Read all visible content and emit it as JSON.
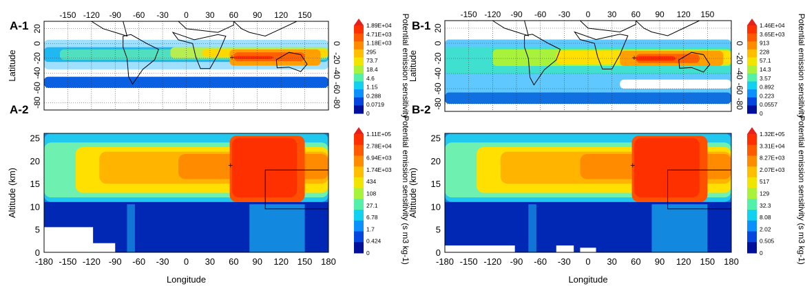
{
  "chart_data": [
    {
      "type": "heatmap",
      "panel_label": "A-1",
      "xlabel": "",
      "ylabel": "Latitude",
      "x_ticks": [
        "-150",
        "-120",
        "-90",
        "-60",
        "-30",
        "0",
        "30",
        "60",
        "90",
        "120",
        "150"
      ],
      "y_ticks_left": [
        "20",
        "0",
        "-20",
        "-40",
        "-60",
        "-80"
      ],
      "y_ticks_right": [
        "0",
        "-20",
        "-40",
        "-60",
        "-80"
      ],
      "colorbar": {
        "label": "Potential emission sensitivity",
        "ticks": [
          "1.89E+04",
          "4.71E+03",
          "1.18E+03",
          "295",
          "73.7",
          "18.4",
          "4.6",
          "1.15",
          "0.288",
          "0.0719",
          "0"
        ]
      }
    },
    {
      "type": "heatmap",
      "panel_label": "A-2",
      "xlabel": "Longitude",
      "ylabel": "Altitude (km)",
      "x_ticks": [
        "-180",
        "-150",
        "-120",
        "-90",
        "-60",
        "-30",
        "0",
        "30",
        "60",
        "90",
        "120",
        "150",
        "180"
      ],
      "y_ticks": [
        "0",
        "5",
        "10",
        "15",
        "20",
        "25"
      ],
      "xlim": [
        -180,
        180
      ],
      "ylim": [
        0,
        25
      ],
      "colorbar": {
        "label": "Potential emission sensitivity (s m3 kg-1)",
        "ticks": [
          "1.11E+05",
          "2.78E+04",
          "6.94E+03",
          "1.74E+03",
          "434",
          "108",
          "27.1",
          "6.78",
          "1.7",
          "0.424",
          "0"
        ]
      }
    },
    {
      "type": "heatmap",
      "panel_label": "B-1",
      "xlabel": "",
      "ylabel": "Latitude",
      "x_ticks": [
        "-150",
        "-120",
        "-90",
        "-60",
        "-30",
        "0",
        "30",
        "60",
        "90",
        "120",
        "150"
      ],
      "y_ticks_left": [
        "20",
        "0",
        "-20",
        "-40",
        "-60",
        "-80"
      ],
      "y_ticks_right": [
        "0",
        "-20",
        "-40",
        "-60",
        "-80"
      ],
      "colorbar": {
        "label": "Potential emission sensitivity",
        "ticks": [
          "1.46E+04",
          "3.65E+03",
          "913",
          "228",
          "57.1",
          "14.3",
          "3.57",
          "0.892",
          "0.223",
          "0.0557",
          "0"
        ]
      }
    },
    {
      "type": "heatmap",
      "panel_label": "B-2",
      "xlabel": "Longitude",
      "ylabel": "Altitude (km)",
      "x_ticks": [
        "-180",
        "-150",
        "-120",
        "-90",
        "-60",
        "-30",
        "0",
        "30",
        "60",
        "90",
        "120",
        "150",
        "180"
      ],
      "y_ticks": [
        "0",
        "5",
        "10",
        "15",
        "20",
        "25"
      ],
      "xlim": [
        -180,
        180
      ],
      "ylim": [
        0,
        25
      ],
      "colorbar": {
        "label": "Potential emission sensitivity (s m3 kg-1)",
        "ticks": [
          "1.32E+05",
          "3.31E+04",
          "8.27E+03",
          "2.07E+03",
          "517",
          "129",
          "32.3",
          "8.08",
          "2.02",
          "0.505",
          "0"
        ]
      }
    }
  ]
}
